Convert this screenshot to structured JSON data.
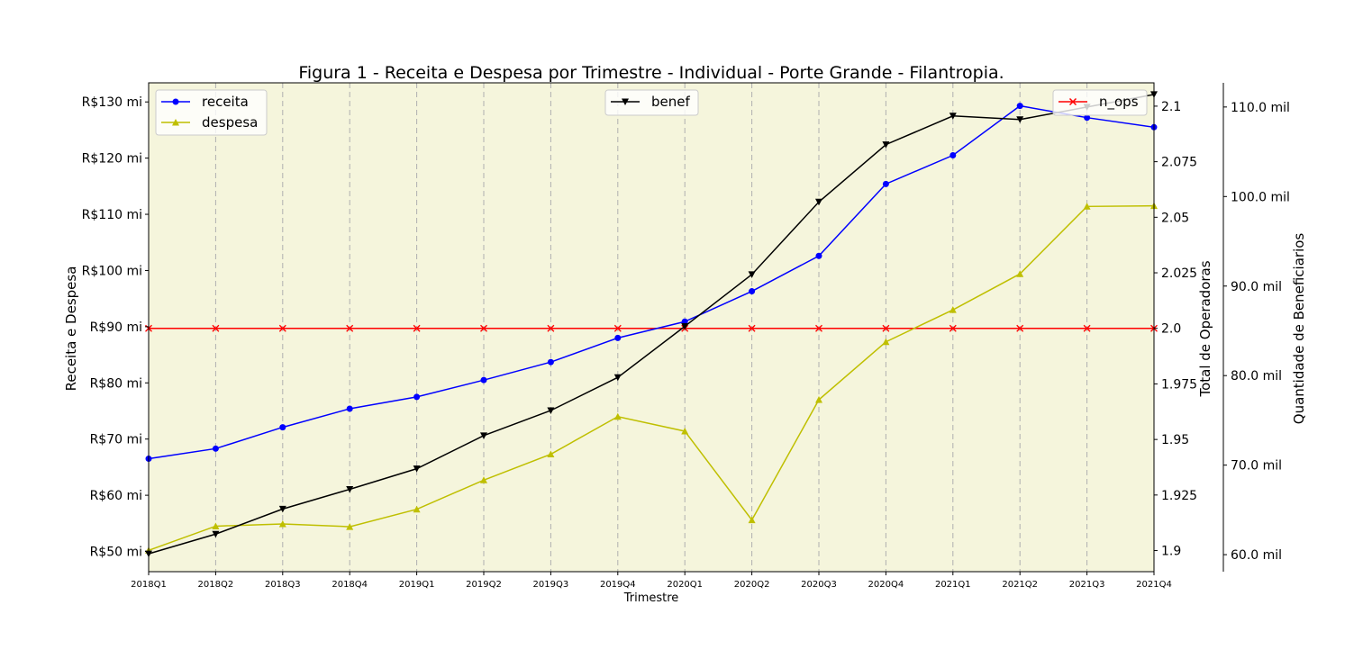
{
  "chart_data": {
    "type": "line",
    "title": "Figura 1 - Receita e Despesa por Trimestre - Individual - Porte Grande - Filantropia.",
    "xlabel": "Trimestre",
    "ylabel_left": "Receita e Despesa",
    "ylabel_right_1": "Total de Operadoras",
    "ylabel_right_2": "Quantidade de Beneficiarios",
    "categories": [
      "2018Q1",
      "2018Q2",
      "2018Q3",
      "2018Q4",
      "2019Q1",
      "2019Q2",
      "2019Q3",
      "2019Q4",
      "2020Q1",
      "2020Q2",
      "2020Q3",
      "2020Q4",
      "2021Q1",
      "2021Q2",
      "2021Q3",
      "2021Q4"
    ],
    "axes": {
      "left": {
        "ylim": [
          46.4,
          133.4
        ],
        "ticks": [
          50,
          60,
          70,
          80,
          90,
          100,
          110,
          120,
          130
        ],
        "tick_labels": [
          "R$50 mi",
          "R$60 mi",
          "R$70 mi",
          "R$80 mi",
          "R$90 mi",
          "R$100 mi",
          "R$110 mi",
          "R$120 mi",
          "R$130 mi"
        ]
      },
      "right1": {
        "ylim": [
          1.8905,
          2.1105
        ],
        "ticks": [
          1.9,
          1.925,
          1.95,
          1.975,
          2.0,
          2.025,
          2.05,
          2.075,
          2.1
        ],
        "tick_labels": [
          "1.9",
          "1.925",
          "1.95",
          "1.975",
          "2.0",
          "2.025",
          "2.05",
          "2.075",
          "2.1"
        ]
      },
      "right2": {
        "ylim": [
          58.1,
          112.7
        ],
        "ticks": [
          60,
          70,
          80,
          90,
          100,
          110
        ],
        "tick_labels": [
          "60.0 mil",
          "70.0 mil",
          "80.0 mil",
          "90.0 mil",
          "100.0 mil",
          "110.0 mil"
        ]
      }
    },
    "series": [
      {
        "name": "receita",
        "axis": "left",
        "color": "#0000ff",
        "marker": "circle",
        "values": [
          66.5,
          68.3,
          72.1,
          75.4,
          77.5,
          80.5,
          83.7,
          88.0,
          90.9,
          96.3,
          102.6,
          115.4,
          120.5,
          129.3,
          127.2,
          125.5
        ]
      },
      {
        "name": "despesa",
        "axis": "left",
        "color": "#bfbf00",
        "marker": "triangle-up",
        "values": [
          50.2,
          54.5,
          54.9,
          54.4,
          57.5,
          62.7,
          67.3,
          74.0,
          71.4,
          55.6,
          77.0,
          87.3,
          93.0,
          99.4,
          111.4,
          111.5
        ]
      },
      {
        "name": "benef",
        "axis": "right2",
        "color": "#000000",
        "marker": "triangle-down",
        "values": [
          60.1,
          62.3,
          65.1,
          67.3,
          69.6,
          73.3,
          76.1,
          79.8,
          85.5,
          91.3,
          99.4,
          105.8,
          109.0,
          108.6,
          110.0,
          111.4
        ]
      },
      {
        "name": "n_ops",
        "axis": "right1",
        "color": "#ff0000",
        "marker": "x",
        "values": [
          2.0,
          2.0,
          2.0,
          2.0,
          2.0,
          2.0,
          2.0,
          2.0,
          2.0,
          2.0,
          2.0,
          2.0,
          2.0,
          2.0,
          2.0,
          2.0
        ]
      }
    ],
    "legends": [
      {
        "position": "upper-left",
        "entries": [
          "receita",
          "despesa"
        ]
      },
      {
        "position": "upper-center",
        "entries": [
          "benef"
        ]
      },
      {
        "position": "upper-right",
        "entries": [
          "n_ops"
        ]
      }
    ],
    "grid": "x-only-dashed",
    "plot_background": "#f5f5dc"
  }
}
